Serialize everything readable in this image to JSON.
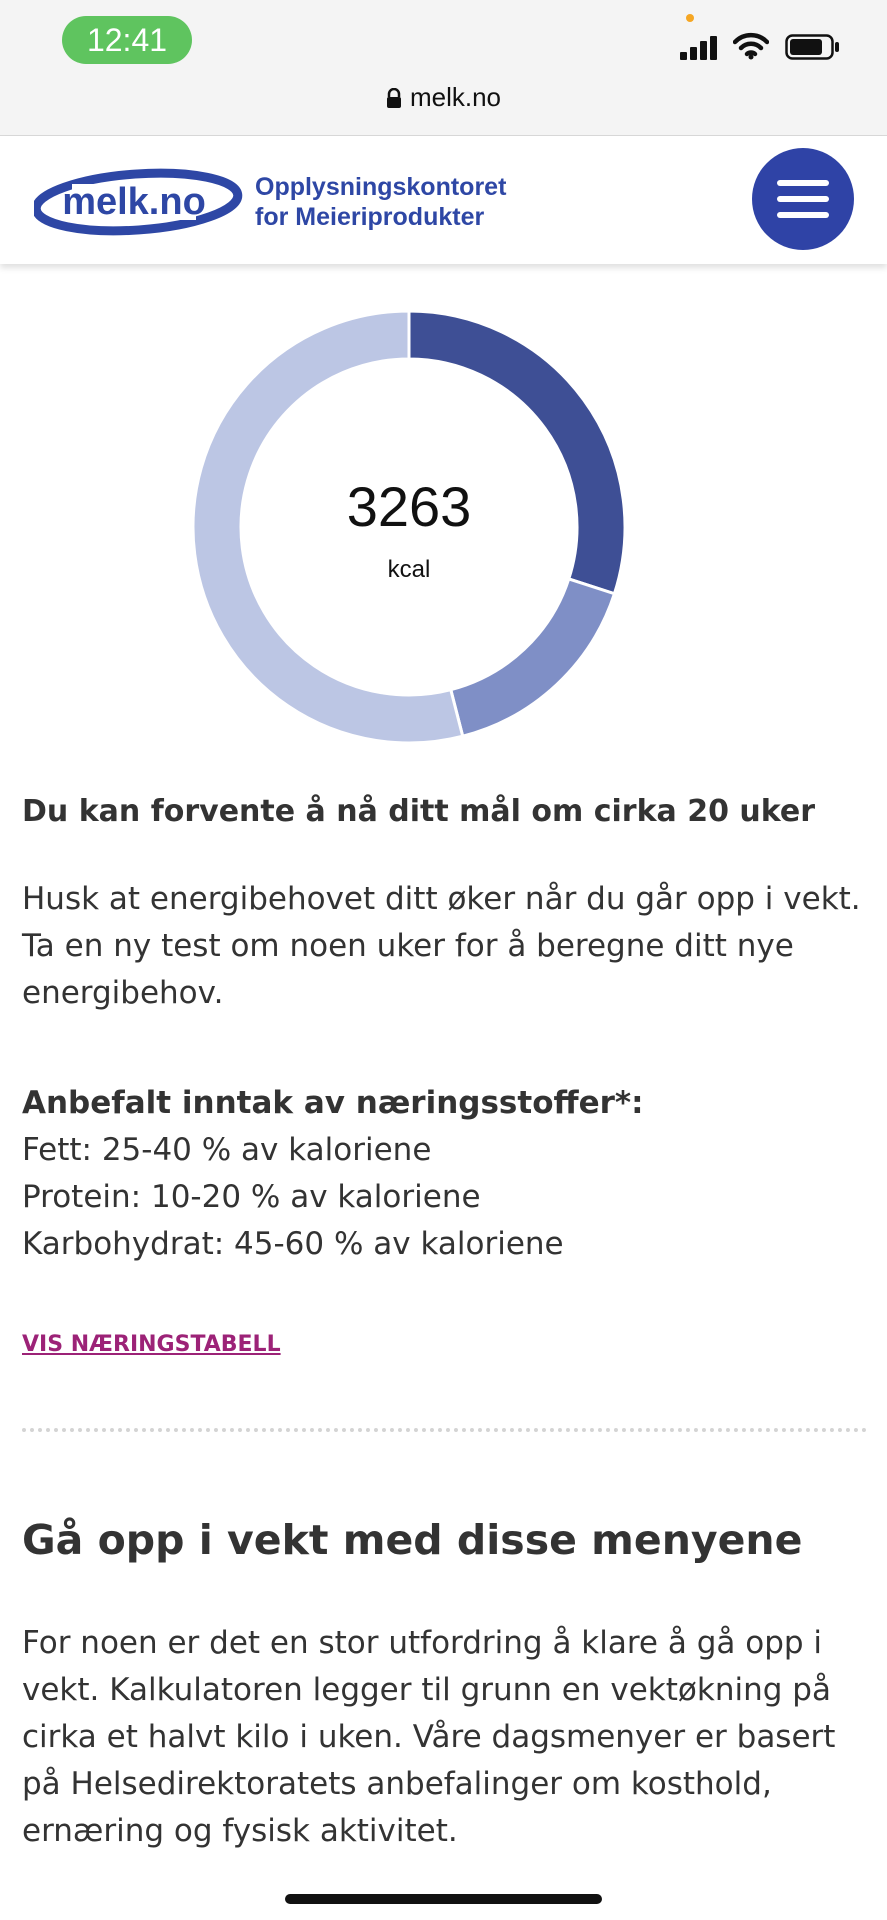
{
  "status_bar": {
    "time": "12:41",
    "url": "melk.no",
    "icons": [
      "signal-icon",
      "wifi-icon",
      "battery-icon",
      "lock-icon"
    ]
  },
  "header": {
    "logo_text": "melk.no",
    "org_line1": "Opplysningskontoret",
    "org_line2": "for Meieriprodukter",
    "menu_icon": "hamburger-menu-icon",
    "brand_color": "#2e47a5"
  },
  "chart_data": {
    "type": "pie",
    "center_value": "3263",
    "center_unit": "kcal",
    "slices": [
      {
        "share": 0.3,
        "color": "#3e4f95"
      },
      {
        "share": 0.16,
        "color": "#7f8fc6"
      },
      {
        "share": 0.54,
        "color": "#bcc6e4"
      }
    ]
  },
  "result": {
    "goal_text": "Du kan forvente å nå ditt mål om cirka 20 uker",
    "note_text": "Husk at energibehovet ditt øker når du går opp i vekt. Ta en ny test om noen uker for å beregne ditt nye energibehov."
  },
  "nutrients": {
    "heading": "Anbefalt inntak av næringsstoffer*:",
    "items": [
      "Fett: 25-40 % av kaloriene",
      "Protein: 10-20 % av kaloriene",
      "Karbohydrat: 45-60 % av kaloriene"
    ]
  },
  "table_link": "VIS NÆRINGSTABELL",
  "menus_section": {
    "heading": "Gå opp i vekt med disse menyene",
    "text": "For noen er det en stor utfordring å klare å gå opp i vekt. Kalkulatoren legger til grunn en vektøkning på cirka et halvt kilo i uken. Våre dagsmenyer er basert på Helsedirektoratets anbefalinger om kosthold, ernæring og fysisk aktivitet."
  },
  "colors": {
    "link": "#9c2277",
    "text": "#333333",
    "status_time_bg": "#5fc45f"
  }
}
